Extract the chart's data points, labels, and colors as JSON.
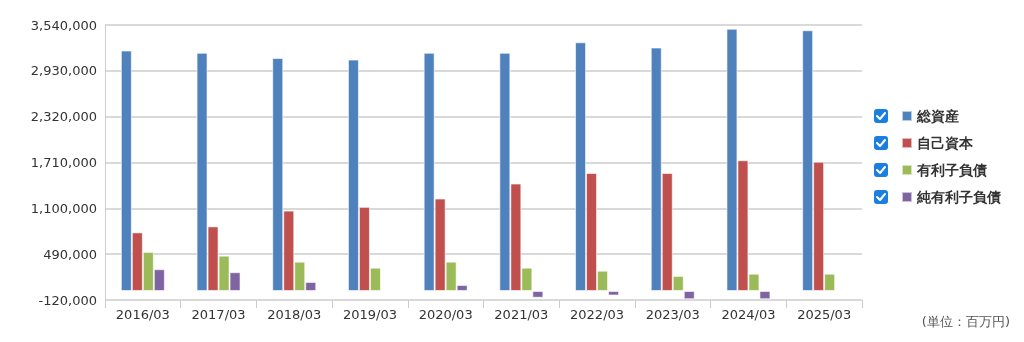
{
  "chart_data": {
    "type": "bar",
    "categories": [
      "2016/03",
      "2017/03",
      "2018/03",
      "2019/03",
      "2020/03",
      "2021/03",
      "2022/03",
      "2023/03",
      "2024/03",
      "2025/03"
    ],
    "series": [
      {
        "name": "総資産",
        "color": "#4f81bd",
        "values": [
          3200000,
          3170000,
          3100000,
          3080000,
          3170000,
          3170000,
          3310000,
          3240000,
          3490000,
          3470000
        ]
      },
      {
        "name": "自己資本",
        "color": "#c0504d",
        "values": [
          780000,
          860000,
          1070000,
          1120000,
          1230000,
          1430000,
          1570000,
          1570000,
          1740000,
          1720000
        ]
      },
      {
        "name": "有利子負債",
        "color": "#9bbb59",
        "values": [
          520000,
          470000,
          390000,
          310000,
          390000,
          310000,
          270000,
          200000,
          230000,
          230000
        ]
      },
      {
        "name": "純有利子負債",
        "color": "#8064a2",
        "values": [
          290000,
          250000,
          120000,
          null,
          80000,
          -90000,
          -60000,
          -110000,
          -110000,
          null
        ]
      }
    ],
    "ylim": [
      -120000,
      3540000
    ],
    "yticks": [
      {
        "value": -120000,
        "label": "-120,000"
      },
      {
        "value": 490000,
        "label": "490,000"
      },
      {
        "value": 1100000,
        "label": "1,100,000"
      },
      {
        "value": 1710000,
        "label": "1,710,000"
      },
      {
        "value": 2320000,
        "label": "2,320,000"
      },
      {
        "value": 2930000,
        "label": "2,930,000"
      },
      {
        "value": 3540000,
        "label": "3,540,000"
      }
    ],
    "grid": "y",
    "legend": "right",
    "annotations": [
      "(単位：百万円)"
    ]
  }
}
